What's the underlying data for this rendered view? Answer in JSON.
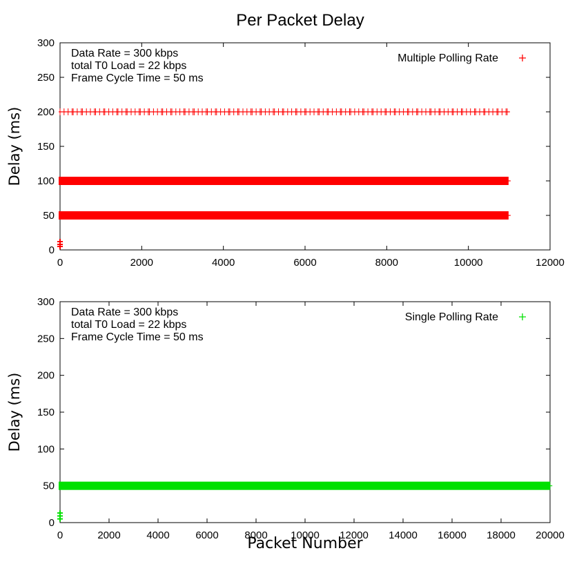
{
  "figure": {
    "title": "Per Packet Delay"
  },
  "chart_data": [
    {
      "type": "scatter",
      "title": "Per Packet Delay",
      "xlabel": "",
      "ylabel": "Delay (ms)",
      "xlim": [
        0,
        12000
      ],
      "ylim": [
        0,
        300
      ],
      "xticks": [
        0,
        2000,
        4000,
        6000,
        8000,
        10000,
        12000
      ],
      "yticks": [
        0,
        50,
        100,
        150,
        200,
        250,
        300
      ],
      "grid": false,
      "legend_position": "top-right",
      "annotations": [
        "Data Rate = 300 kbps",
        "total T0 Load = 22  kbps",
        "Frame Cycle Time  = 50 ms"
      ],
      "series": [
        {
          "name": "Multiple Polling Rate",
          "color": "#ff0000",
          "marker": "plus",
          "bands": [
            {
              "y": 200,
              "x_start": 0,
              "x_end": 10950,
              "style": "sparse"
            },
            {
              "y": 100,
              "x_start": 0,
              "x_end": 10950,
              "style": "dense"
            },
            {
              "y": 50,
              "x_start": 0,
              "x_end": 10950,
              "style": "dense"
            }
          ],
          "points": [
            {
              "x": 0,
              "y": 5
            },
            {
              "x": 0,
              "y": 8
            },
            {
              "x": 0,
              "y": 12
            }
          ]
        }
      ]
    },
    {
      "type": "scatter",
      "xlabel": "Packet Number",
      "ylabel": "Delay (ms)",
      "xlim": [
        0,
        20000
      ],
      "ylim": [
        0,
        300
      ],
      "xticks": [
        0,
        2000,
        4000,
        6000,
        8000,
        10000,
        12000,
        14000,
        16000,
        18000,
        20000
      ],
      "yticks": [
        0,
        50,
        100,
        150,
        200,
        250,
        300
      ],
      "grid": false,
      "legend_position": "top-right",
      "annotations": [
        "Data Rate = 300 kbps",
        "total T0 Load = 22  kbps",
        "Frame Cycle Time  = 50 ms"
      ],
      "series": [
        {
          "name": "Single Polling Rate",
          "color": "#00e000",
          "marker": "plus",
          "bands": [
            {
              "y": 50,
              "x_start": 0,
              "x_end": 19950,
              "style": "dense"
            }
          ],
          "points": [
            {
              "x": 0,
              "y": 5
            },
            {
              "x": 0,
              "y": 9
            },
            {
              "x": 0,
              "y": 13
            }
          ]
        }
      ]
    }
  ]
}
